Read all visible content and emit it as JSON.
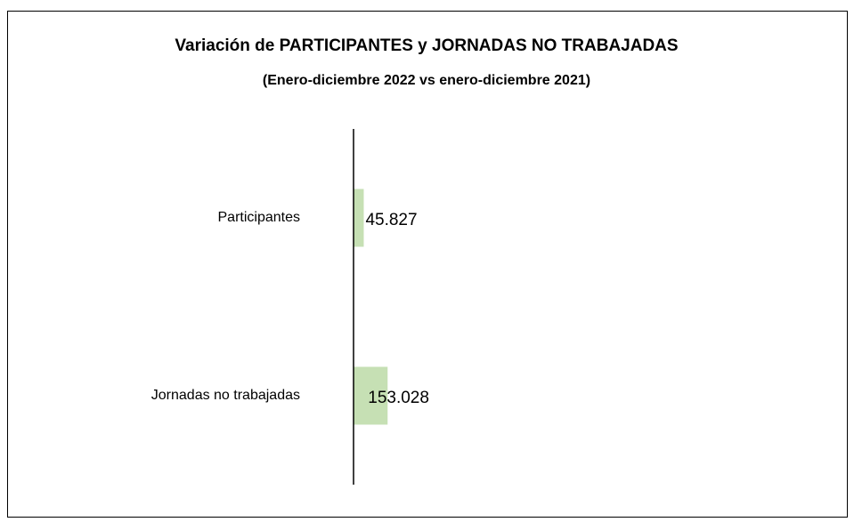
{
  "chart_data": {
    "type": "hbar",
    "title": "Variación de PARTICIPANTES y JORNADAS NO TRABAJADAS",
    "subtitle": "(Enero-diciembre 2022 vs enero-diciembre 2021)",
    "categories": [
      "Participantes",
      "Jornadas no trabajadas"
    ],
    "values": [
      45827,
      153028
    ],
    "value_labels": [
      "45.827",
      "153.028"
    ],
    "color": "#c6e0b4",
    "xlim": [
      0,
      2000000
    ]
  }
}
